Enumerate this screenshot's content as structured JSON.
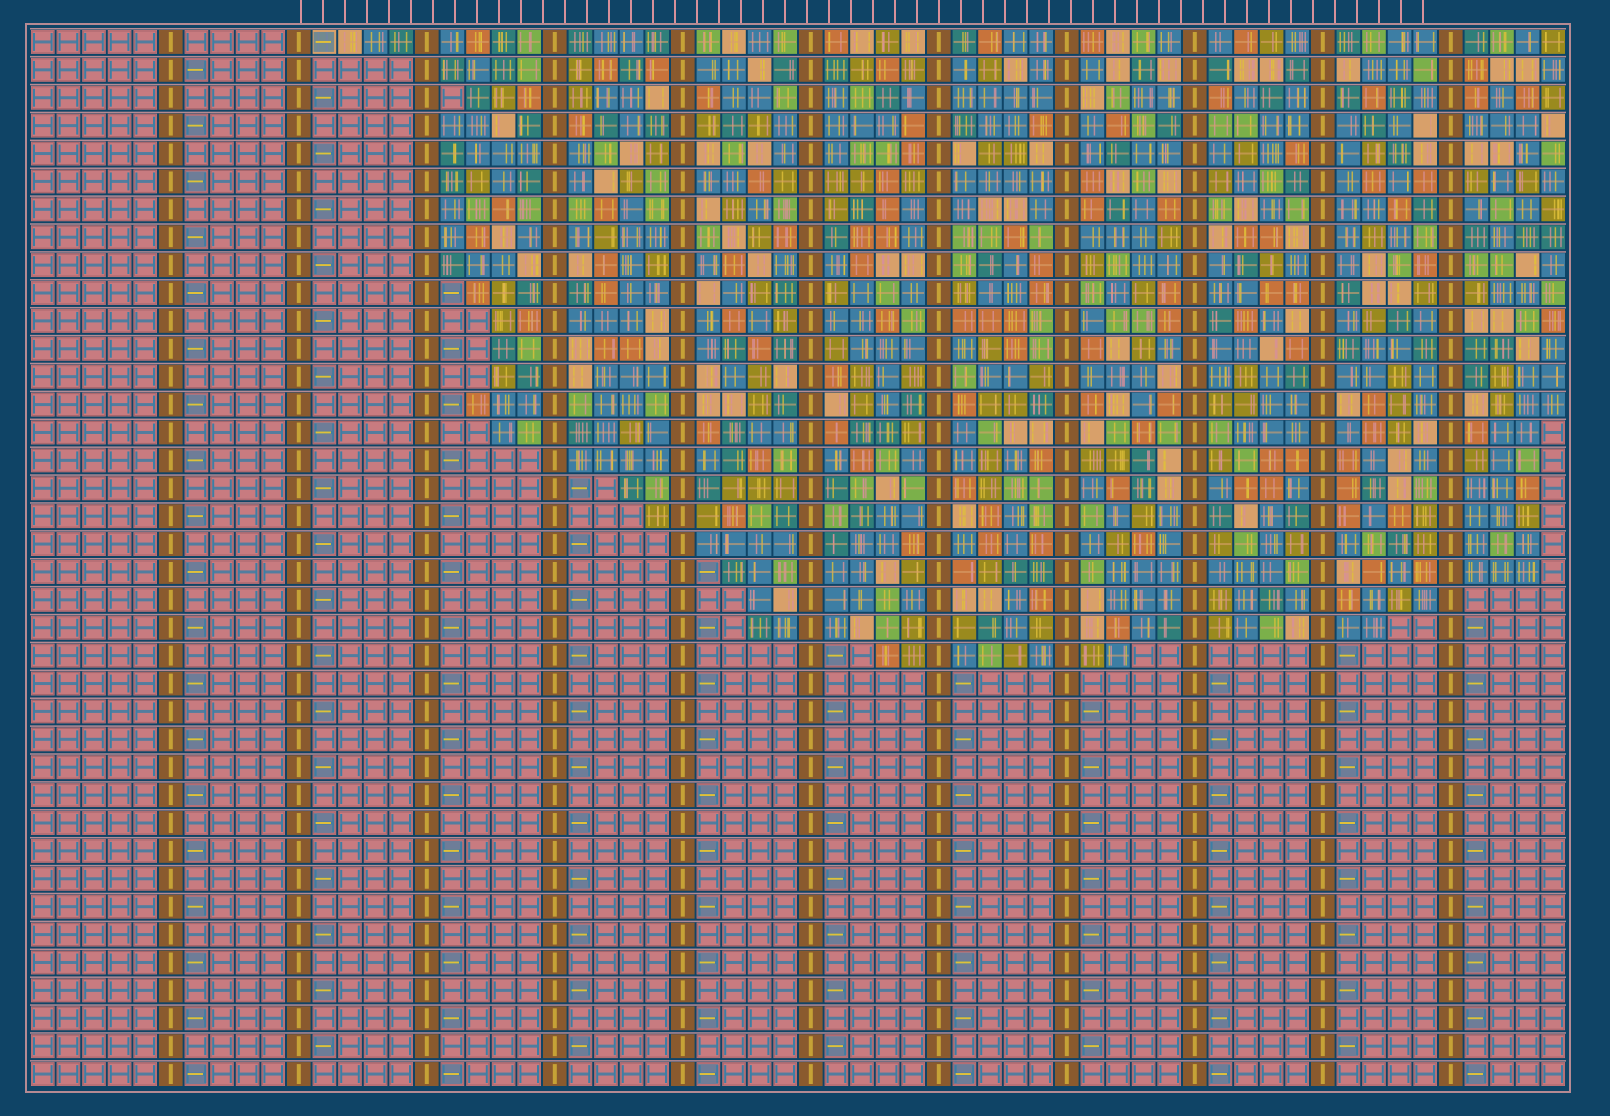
{
  "colors": {
    "background": "#0f4466",
    "die_border": "#b58a93",
    "filler_cell": "#c87b80",
    "filler_cell_dark": "#a8666c",
    "metal_blue": "#3d7ea4",
    "well_orange": "#c8733b",
    "poly_tan": "#d8a06a",
    "active_olive": "#9a8a1e",
    "active_teal": "#2f7f7a",
    "contact_green": "#7bb04a",
    "tap_yellow": "#e0c03a",
    "strap_brown": "#8a5a2e",
    "pin_pink": "#d7909a"
  },
  "layout": {
    "rows": 38,
    "cols": 60,
    "strap_cols": [
      5,
      10,
      15,
      20,
      25,
      30,
      35,
      40,
      45,
      50,
      55
    ],
    "logic_region": [
      [
        0,
        11,
        59
      ],
      [
        1,
        15,
        59
      ],
      [
        2,
        17,
        59
      ],
      [
        3,
        15,
        59
      ],
      [
        4,
        15,
        59
      ],
      [
        5,
        15,
        59
      ],
      [
        6,
        15,
        59
      ],
      [
        7,
        15,
        59
      ],
      [
        8,
        15,
        59
      ],
      [
        9,
        17,
        59
      ],
      [
        10,
        18,
        59
      ],
      [
        11,
        18,
        59
      ],
      [
        12,
        18,
        59
      ],
      [
        13,
        17,
        59
      ],
      [
        14,
        18,
        58
      ],
      [
        15,
        21,
        58
      ],
      [
        16,
        23,
        58
      ],
      [
        17,
        24,
        58
      ],
      [
        18,
        26,
        58
      ],
      [
        19,
        27,
        58
      ],
      [
        20,
        28,
        54
      ],
      [
        21,
        28,
        52
      ],
      [
        22,
        33,
        42
      ]
    ],
    "top_pins": 52
  }
}
